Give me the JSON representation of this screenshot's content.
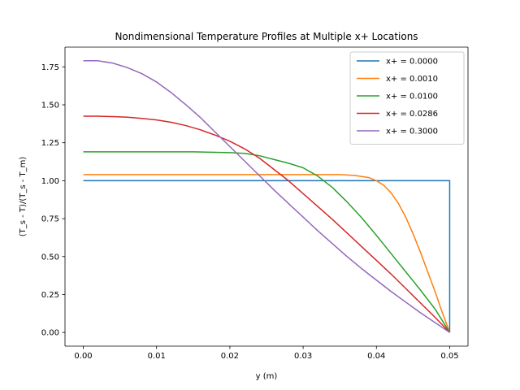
{
  "chart_data": {
    "type": "line",
    "title": "Nondimensional Temperature Profiles at Multiple x+ Locations",
    "xlabel": "y (m)",
    "ylabel": "(T_s - T)/(T_s - T_m)",
    "xlim": [
      -0.0025,
      0.0525
    ],
    "ylim": [
      -0.09,
      1.88
    ],
    "xticks": [
      0.0,
      0.01,
      0.02,
      0.03,
      0.04,
      0.05
    ],
    "xtick_labels": [
      "0.00",
      "0.01",
      "0.02",
      "0.03",
      "0.04",
      "0.05"
    ],
    "yticks": [
      0.0,
      0.25,
      0.5,
      0.75,
      1.0,
      1.25,
      1.5,
      1.75
    ],
    "ytick_labels": [
      "0.00",
      "0.25",
      "0.50",
      "0.75",
      "1.00",
      "1.25",
      "1.50",
      "1.75"
    ],
    "grid": false,
    "legend_position": "top-right",
    "series": [
      {
        "name": "x+ = 0.0000",
        "color": "#1f77b4",
        "x": [
          0.0,
          0.01,
          0.02,
          0.03,
          0.04,
          0.0499,
          0.05,
          0.05
        ],
        "y": [
          1.0,
          1.0,
          1.0,
          1.0,
          1.0,
          1.0,
          1.0,
          0.0
        ]
      },
      {
        "name": "x+ = 0.0010",
        "color": "#ff7f0e",
        "x": [
          0.0,
          0.01,
          0.02,
          0.03,
          0.035,
          0.037,
          0.039,
          0.04,
          0.041,
          0.042,
          0.043,
          0.044,
          0.045,
          0.046,
          0.047,
          0.048,
          0.049,
          0.05
        ],
        "y": [
          1.04,
          1.04,
          1.04,
          1.04,
          1.04,
          1.035,
          1.02,
          1.0,
          0.97,
          0.92,
          0.85,
          0.76,
          0.65,
          0.53,
          0.4,
          0.27,
          0.13,
          0.0
        ]
      },
      {
        "name": "x+ = 0.0100",
        "color": "#2ca02c",
        "x": [
          0.0,
          0.005,
          0.01,
          0.015,
          0.02,
          0.022,
          0.024,
          0.026,
          0.028,
          0.03,
          0.032,
          0.034,
          0.036,
          0.038,
          0.04,
          0.042,
          0.044,
          0.046,
          0.048,
          0.05
        ],
        "y": [
          1.19,
          1.19,
          1.19,
          1.19,
          1.185,
          1.18,
          1.165,
          1.14,
          1.115,
          1.085,
          1.03,
          0.955,
          0.86,
          0.755,
          0.64,
          0.52,
          0.4,
          0.28,
          0.155,
          0.0
        ]
      },
      {
        "name": "x+ = 0.0286",
        "color": "#d62728",
        "x": [
          0.0,
          0.002,
          0.004,
          0.006,
          0.008,
          0.01,
          0.012,
          0.014,
          0.016,
          0.018,
          0.02,
          0.022,
          0.024,
          0.026,
          0.028,
          0.03,
          0.032,
          0.034,
          0.036,
          0.038,
          0.04,
          0.042,
          0.044,
          0.046,
          0.048,
          0.05
        ],
        "y": [
          1.425,
          1.425,
          1.422,
          1.418,
          1.41,
          1.4,
          1.385,
          1.363,
          1.335,
          1.3,
          1.26,
          1.21,
          1.15,
          1.075,
          1.0,
          0.915,
          0.83,
          0.745,
          0.655,
          0.565,
          0.475,
          0.385,
          0.29,
          0.195,
          0.1,
          0.0
        ]
      },
      {
        "name": "x+ = 0.3000",
        "color": "#9467bd",
        "x": [
          0.0,
          0.002,
          0.004,
          0.006,
          0.008,
          0.01,
          0.012,
          0.014,
          0.016,
          0.018,
          0.02,
          0.022,
          0.024,
          0.026,
          0.028,
          0.03,
          0.032,
          0.034,
          0.036,
          0.038,
          0.04,
          0.042,
          0.044,
          0.046,
          0.048,
          0.05
        ],
        "y": [
          1.79,
          1.79,
          1.775,
          1.745,
          1.705,
          1.65,
          1.58,
          1.5,
          1.415,
          1.32,
          1.225,
          1.13,
          1.035,
          0.94,
          0.85,
          0.76,
          0.67,
          0.585,
          0.5,
          0.42,
          0.345,
          0.27,
          0.2,
          0.13,
          0.065,
          0.0
        ]
      }
    ]
  }
}
